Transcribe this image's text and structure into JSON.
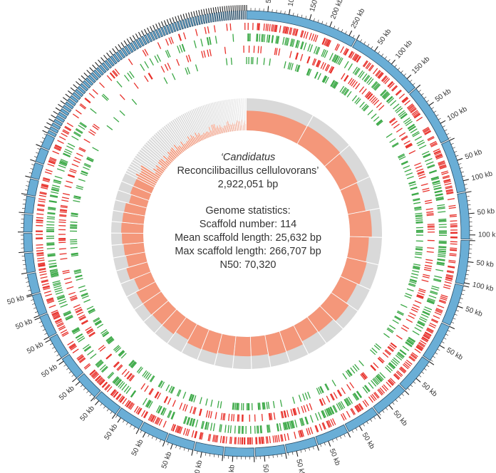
{
  "organism": {
    "genus_line": "‘Candidatus",
    "species_line": "Reconcilibacillus cellulovorans’",
    "genome_size": "2,922,051 bp"
  },
  "statistics": {
    "heading": "Genome statistics:",
    "scaffold_number": "Scaffold number: 114",
    "mean_scaffold_length": "Mean scaffold length: 25,632 bp",
    "max_scaffold_length": "Max scaffold length: 266,707 bp",
    "n50": "N50: 70,320"
  },
  "kb_labels": [
    "50 kb",
    "100 kb",
    "150 kb",
    "200 kb",
    "250 kb"
  ],
  "colors": {
    "scaffold": "#6aaed6",
    "scaffold_stroke": "#2a4d66",
    "tick": "#222222",
    "red_track": "#e8302a",
    "green_track": "#3aa845",
    "gc_fill": "#f4977a",
    "gc_background": "#d9d9d9",
    "text": "#333333"
  }
}
